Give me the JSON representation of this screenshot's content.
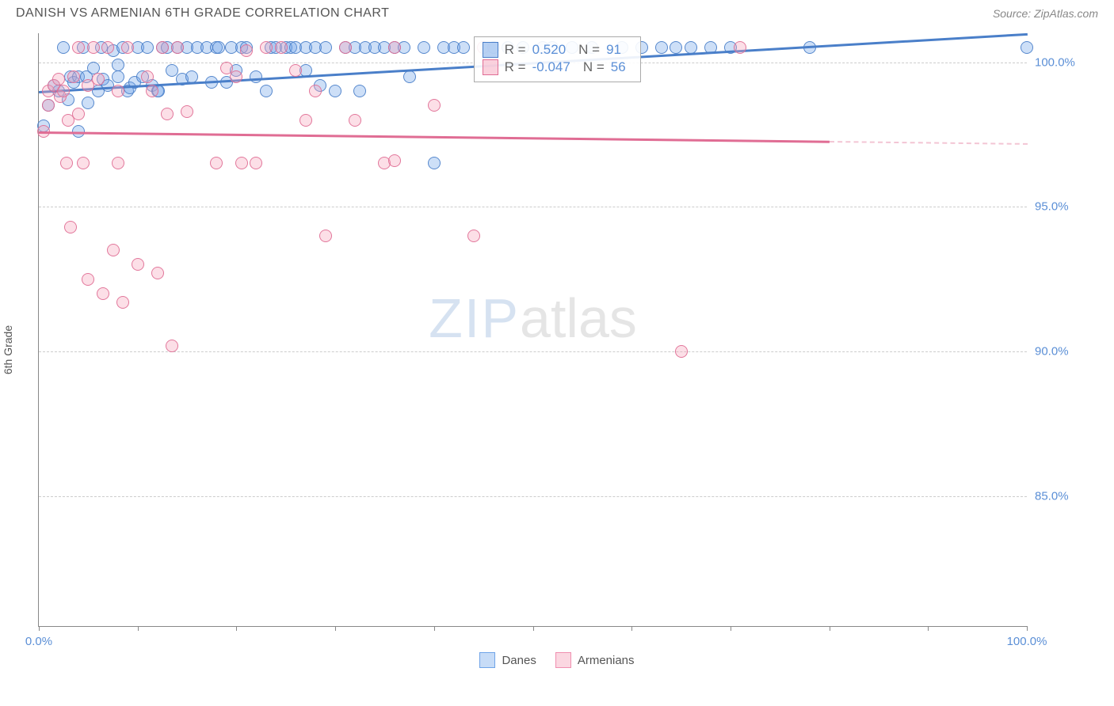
{
  "header": {
    "title": "DANISH VS ARMENIAN 6TH GRADE CORRELATION CHART",
    "source": "Source: ZipAtlas.com"
  },
  "chart": {
    "type": "scatter",
    "ylabel": "6th Grade",
    "background_color": "#ffffff",
    "grid_color": "#cccccc",
    "axis_color": "#888888",
    "tick_label_color": "#5b8fd6",
    "label_fontsize": 14,
    "tick_fontsize": 15,
    "xlim": [
      0,
      100
    ],
    "ylim": [
      80.5,
      101.0
    ],
    "xtick_positions": [
      0,
      10,
      20,
      30,
      40,
      50,
      60,
      70,
      80,
      90,
      100
    ],
    "xtick_labels": {
      "0": "0.0%",
      "100": "100.0%"
    },
    "ytick_positions": [
      85.0,
      90.0,
      95.0,
      100.0
    ],
    "ytick_labels": [
      "85.0%",
      "90.0%",
      "95.0%",
      "100.0%"
    ],
    "marker_radius": 8,
    "marker_fill_opacity": 0.35,
    "marker_stroke_opacity": 0.9,
    "series": [
      {
        "name": "Danes",
        "color": "#6fa4e8",
        "stroke": "#4a7fc9",
        "trend": {
          "x0": 0,
          "y0": 99.0,
          "x1": 100,
          "y1": 101.0,
          "line_width": 2.5,
          "dash_from_x": null
        },
        "stats": {
          "R": "0.520",
          "N": "91"
        },
        "points": [
          [
            0.5,
            97.8
          ],
          [
            1.0,
            98.5
          ],
          [
            1.5,
            99.2
          ],
          [
            2.0,
            99.0
          ],
          [
            2.5,
            100.5
          ],
          [
            3.0,
            98.7
          ],
          [
            3.2,
            99.5
          ],
          [
            3.5,
            99.3
          ],
          [
            4.0,
            99.5
          ],
          [
            4.0,
            97.6
          ],
          [
            4.5,
            100.5
          ],
          [
            4.8,
            99.5
          ],
          [
            5.0,
            98.6
          ],
          [
            5.5,
            99.8
          ],
          [
            6.0,
            99.0
          ],
          [
            6.3,
            100.5
          ],
          [
            6.5,
            99.4
          ],
          [
            7.0,
            99.2
          ],
          [
            7.5,
            100.4
          ],
          [
            8.0,
            99.5
          ],
          [
            8.0,
            99.9
          ],
          [
            8.5,
            100.5
          ],
          [
            9.0,
            99.0
          ],
          [
            9.2,
            99.1
          ],
          [
            9.7,
            99.3
          ],
          [
            10.0,
            100.5
          ],
          [
            10.5,
            99.5
          ],
          [
            11.0,
            100.5
          ],
          [
            11.5,
            99.2
          ],
          [
            12.0,
            99.0
          ],
          [
            12.1,
            99.0
          ],
          [
            12.5,
            100.5
          ],
          [
            13.0,
            100.5
          ],
          [
            13.5,
            99.7
          ],
          [
            14.0,
            100.5
          ],
          [
            14.5,
            99.4
          ],
          [
            15.0,
            100.5
          ],
          [
            15.5,
            99.5
          ],
          [
            16.0,
            100.5
          ],
          [
            17.0,
            100.5
          ],
          [
            17.5,
            99.3
          ],
          [
            18.0,
            100.5
          ],
          [
            18.2,
            100.5
          ],
          [
            19.0,
            99.3
          ],
          [
            19.5,
            100.5
          ],
          [
            20.0,
            99.7
          ],
          [
            20.5,
            100.5
          ],
          [
            21.0,
            100.5
          ],
          [
            22.0,
            99.5
          ],
          [
            23.0,
            99.0
          ],
          [
            23.5,
            100.5
          ],
          [
            24.0,
            100.5
          ],
          [
            25.0,
            100.5
          ],
          [
            25.5,
            100.5
          ],
          [
            26.0,
            100.5
          ],
          [
            27.0,
            99.7
          ],
          [
            27.0,
            100.5
          ],
          [
            28.0,
            100.5
          ],
          [
            28.5,
            99.2
          ],
          [
            29.0,
            100.5
          ],
          [
            30.0,
            99.0
          ],
          [
            31.0,
            100.5
          ],
          [
            32.0,
            100.5
          ],
          [
            32.5,
            99.0
          ],
          [
            33.0,
            100.5
          ],
          [
            34.0,
            100.5
          ],
          [
            35.0,
            100.5
          ],
          [
            36.0,
            100.5
          ],
          [
            37.0,
            100.5
          ],
          [
            37.5,
            99.5
          ],
          [
            39.0,
            100.5
          ],
          [
            40.0,
            96.5
          ],
          [
            41.0,
            100.5
          ],
          [
            42.0,
            100.5
          ],
          [
            43.0,
            100.5
          ],
          [
            46.0,
            100.5
          ],
          [
            47.5,
            100.5
          ],
          [
            49.0,
            100.5
          ],
          [
            51.0,
            100.5
          ],
          [
            52.0,
            100.5
          ],
          [
            54.0,
            100.5
          ],
          [
            56.0,
            100.5
          ],
          [
            59.0,
            100.5
          ],
          [
            61.0,
            100.5
          ],
          [
            63.0,
            100.5
          ],
          [
            64.5,
            100.5
          ],
          [
            66.0,
            100.5
          ],
          [
            68.0,
            100.5
          ],
          [
            70.0,
            100.5
          ],
          [
            78.0,
            100.5
          ],
          [
            100.0,
            100.5
          ]
        ]
      },
      {
        "name": "Armenians",
        "color": "#f5a3bb",
        "stroke": "#e06d94",
        "trend": {
          "x0": 0,
          "y0": 97.6,
          "x1": 100,
          "y1": 97.2,
          "line_width": 2.5,
          "dash_from_x": 80
        },
        "stats": {
          "R": "-0.047",
          "N": "56"
        },
        "points": [
          [
            0.5,
            97.6
          ],
          [
            1.0,
            98.5
          ],
          [
            1.0,
            99.0
          ],
          [
            1.5,
            99.2
          ],
          [
            2.0,
            99.4
          ],
          [
            2.2,
            98.8
          ],
          [
            2.5,
            99.0
          ],
          [
            2.8,
            96.5
          ],
          [
            3.0,
            98.0
          ],
          [
            3.2,
            94.3
          ],
          [
            3.5,
            99.5
          ],
          [
            4.0,
            98.2
          ],
          [
            4.0,
            100.5
          ],
          [
            4.5,
            96.5
          ],
          [
            5.0,
            92.5
          ],
          [
            5.0,
            99.2
          ],
          [
            5.5,
            100.5
          ],
          [
            6.0,
            99.4
          ],
          [
            6.5,
            92.0
          ],
          [
            7.0,
            100.5
          ],
          [
            7.5,
            93.5
          ],
          [
            8.0,
            99.0
          ],
          [
            8.0,
            96.5
          ],
          [
            8.5,
            91.7
          ],
          [
            9.0,
            100.5
          ],
          [
            10.0,
            93.0
          ],
          [
            11.0,
            99.5
          ],
          [
            11.5,
            99.0
          ],
          [
            12.0,
            92.7
          ],
          [
            12.5,
            100.5
          ],
          [
            13.0,
            98.2
          ],
          [
            13.5,
            90.2
          ],
          [
            14.0,
            100.5
          ],
          [
            15.0,
            98.3
          ],
          [
            18.0,
            96.5
          ],
          [
            19.0,
            99.8
          ],
          [
            20.0,
            99.5
          ],
          [
            20.5,
            96.5
          ],
          [
            21.0,
            100.4
          ],
          [
            22.0,
            96.5
          ],
          [
            23.0,
            100.5
          ],
          [
            24.5,
            100.5
          ],
          [
            26.0,
            99.7
          ],
          [
            27.0,
            98.0
          ],
          [
            28.0,
            99.0
          ],
          [
            29.0,
            94.0
          ],
          [
            31.0,
            100.5
          ],
          [
            32.0,
            98.0
          ],
          [
            35.0,
            96.5
          ],
          [
            36.0,
            100.5
          ],
          [
            36.0,
            96.6
          ],
          [
            40.0,
            98.5
          ],
          [
            44.0,
            94.0
          ],
          [
            45.0,
            100.5
          ],
          [
            65.0,
            90.0
          ],
          [
            71.0,
            100.5
          ]
        ]
      }
    ],
    "statbox": {
      "left_pct": 44.0,
      "top_y": 100.9
    },
    "watermark": {
      "zip": "ZIP",
      "atlas": "atlas"
    },
    "legend": [
      {
        "label": "Danes",
        "fill": "#c7dcf7",
        "stroke": "#6fa4e8"
      },
      {
        "label": "Armenians",
        "fill": "#fbd7e1",
        "stroke": "#f08fb0"
      }
    ]
  }
}
